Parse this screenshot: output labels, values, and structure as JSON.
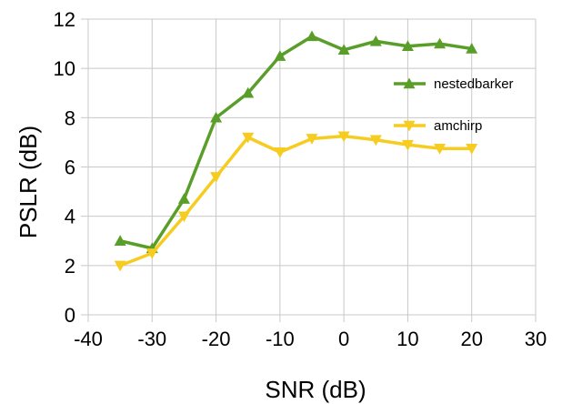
{
  "chart_data": {
    "type": "line",
    "xlabel": "SNR (dB)",
    "ylabel": "PSLR (dB)",
    "xlim": [
      -40,
      30
    ],
    "ylim": [
      0,
      12
    ],
    "xticks": [
      -40,
      -30,
      -20,
      -10,
      0,
      10,
      20,
      30
    ],
    "yticks": [
      0,
      2,
      4,
      6,
      8,
      10,
      12
    ],
    "x_tick_labels": [
      "-40",
      "-30",
      "-20",
      "-10",
      "0",
      "10",
      "20",
      "30"
    ],
    "y_tick_labels": [
      "0",
      "2",
      "4",
      "6",
      "8",
      "10",
      "12"
    ],
    "grid": true,
    "legend_position": "right",
    "series": [
      {
        "name": "nestedbarker",
        "color": "#5a9e2a",
        "marker": "triangle-up",
        "x": [
          -35,
          -30,
          -25,
          -20,
          -15,
          -10,
          -5,
          0,
          5,
          10,
          15,
          20
        ],
        "y": [
          3.0,
          2.7,
          4.7,
          8.0,
          9.0,
          10.5,
          11.3,
          10.75,
          11.1,
          10.9,
          11.0,
          10.8
        ]
      },
      {
        "name": "amchirp",
        "color": "#f5cc1f",
        "marker": "triangle-down",
        "x": [
          -35,
          -30,
          -25,
          -20,
          -15,
          -10,
          -5,
          0,
          5,
          10,
          15,
          20
        ],
        "y": [
          2.0,
          2.5,
          4.0,
          5.6,
          7.2,
          6.6,
          7.15,
          7.25,
          7.1,
          6.9,
          6.75,
          6.75
        ]
      }
    ]
  }
}
